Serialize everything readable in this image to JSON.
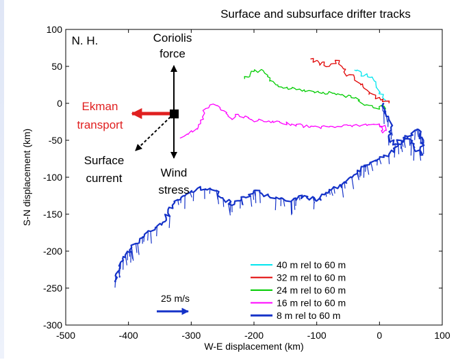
{
  "chart_data": {
    "type": "line",
    "title": "Surface and subsurface drifter tracks",
    "xlabel": "W-E displacement (km)",
    "ylabel": "S-N displacement (km)",
    "xlim": [
      -500,
      100
    ],
    "ylim": [
      -300,
      100
    ],
    "x_ticks": [
      -500,
      -400,
      -300,
      -200,
      -100,
      0,
      100
    ],
    "y_ticks": [
      100,
      50,
      0,
      -50,
      -100,
      -150,
      -200,
      -250,
      -300
    ],
    "grid": false,
    "legend_position": "bottom-right",
    "series": [
      {
        "name": "40 m rel to 60 m",
        "color": "#00e5ee",
        "width": 1.3,
        "jitter": 3,
        "points": [
          [
            -40,
            45
          ],
          [
            -30,
            43
          ],
          [
            -25,
            37
          ],
          [
            -20,
            40
          ],
          [
            -15,
            35
          ],
          [
            -8,
            30
          ],
          [
            -5,
            22
          ],
          [
            0,
            15
          ],
          [
            5,
            8
          ],
          [
            10,
            4
          ]
        ]
      },
      {
        "name": "32 m rel to 60 m",
        "color": "#e00000",
        "width": 1.3,
        "jitter": 3.5,
        "points": [
          [
            -110,
            60
          ],
          [
            -100,
            58
          ],
          [
            -95,
            52
          ],
          [
            -88,
            56
          ],
          [
            -80,
            50
          ],
          [
            -65,
            58
          ],
          [
            -60,
            50
          ],
          [
            -55,
            40
          ],
          [
            -40,
            35
          ],
          [
            -30,
            25
          ],
          [
            -20,
            18
          ],
          [
            -10,
            12
          ],
          [
            0,
            8
          ],
          [
            10,
            3
          ],
          [
            15,
            0
          ]
        ]
      },
      {
        "name": "24 m rel to 60 m",
        "color": "#00cc00",
        "width": 1.3,
        "jitter": 2.5,
        "points": [
          [
            -215,
            33
          ],
          [
            -200,
            43
          ],
          [
            -185,
            44
          ],
          [
            -178,
            38
          ],
          [
            -175,
            30
          ],
          [
            -165,
            25
          ],
          [
            -140,
            20
          ],
          [
            -110,
            17
          ],
          [
            -90,
            15
          ],
          [
            -60,
            12
          ],
          [
            -40,
            7
          ],
          [
            -20,
            -2
          ],
          [
            -10,
            -6
          ],
          [
            0,
            -8
          ],
          [
            5,
            -2
          ],
          [
            10,
            -8
          ]
        ]
      },
      {
        "name": "16 m rel to 60 m",
        "color": "#ff00ff",
        "width": 1.3,
        "jitter": 2.5,
        "points": [
          [
            -318,
            -47
          ],
          [
            -305,
            -42
          ],
          [
            -290,
            -35
          ],
          [
            -285,
            -25
          ],
          [
            -278,
            -8
          ],
          [
            -270,
            -2
          ],
          [
            -258,
            -3
          ],
          [
            -248,
            -10
          ],
          [
            -235,
            -22
          ],
          [
            -225,
            -15
          ],
          [
            -205,
            -22
          ],
          [
            -180,
            -25
          ],
          [
            -140,
            -28
          ],
          [
            -110,
            -32
          ],
          [
            -80,
            -32
          ],
          [
            -50,
            -30
          ],
          [
            -20,
            -30
          ],
          [
            0,
            -28
          ],
          [
            10,
            -33
          ],
          [
            5,
            -40
          ],
          [
            0,
            -28
          ]
        ]
      },
      {
        "name": "8 m rel to 60 m",
        "color": "#1432c8",
        "width": 2.2,
        "jitter": 3,
        "points": [
          [
            -420,
            -242
          ],
          [
            -415,
            -220
          ],
          [
            -405,
            -205
          ],
          [
            -395,
            -195
          ],
          [
            -375,
            -180
          ],
          [
            -355,
            -168
          ],
          [
            -340,
            -155
          ],
          [
            -330,
            -138
          ],
          [
            -310,
            -125
          ],
          [
            -290,
            -115
          ],
          [
            -270,
            -115
          ],
          [
            -260,
            -118
          ],
          [
            -250,
            -128
          ],
          [
            -235,
            -138
          ],
          [
            -220,
            -130
          ],
          [
            -200,
            -118
          ],
          [
            -185,
            -125
          ],
          [
            -165,
            -127
          ],
          [
            -140,
            -132
          ],
          [
            -120,
            -125
          ],
          [
            -100,
            -132
          ],
          [
            -80,
            -118
          ],
          [
            -60,
            -110
          ],
          [
            -45,
            -100
          ],
          [
            -30,
            -90
          ],
          [
            -15,
            -80
          ],
          [
            0,
            -75
          ],
          [
            15,
            -70
          ],
          [
            30,
            -55
          ],
          [
            45,
            -45
          ],
          [
            60,
            -35
          ],
          [
            70,
            -50
          ],
          [
            65,
            -70
          ],
          [
            55,
            -55
          ],
          [
            45,
            -45
          ],
          [
            25,
            -55
          ],
          [
            15,
            -50
          ],
          [
            20,
            -30
          ],
          [
            10,
            -15
          ],
          [
            5,
            0
          ]
        ]
      }
    ],
    "annotations": {
      "hemisphere": "N. H.",
      "coriolis_line1": "Coriolis",
      "coriolis_line2": "force",
      "ekman_line1": "Ekman",
      "ekman_line2": "transport",
      "surface_line1": "Surface",
      "surface_line2": "current",
      "wind_line1": "Wind",
      "wind_line2": "stress",
      "scale_label": "25 m/s",
      "colors": {
        "ekman": "#e02020",
        "black": "#000000",
        "scale_arrow": "#1432c8"
      }
    }
  }
}
